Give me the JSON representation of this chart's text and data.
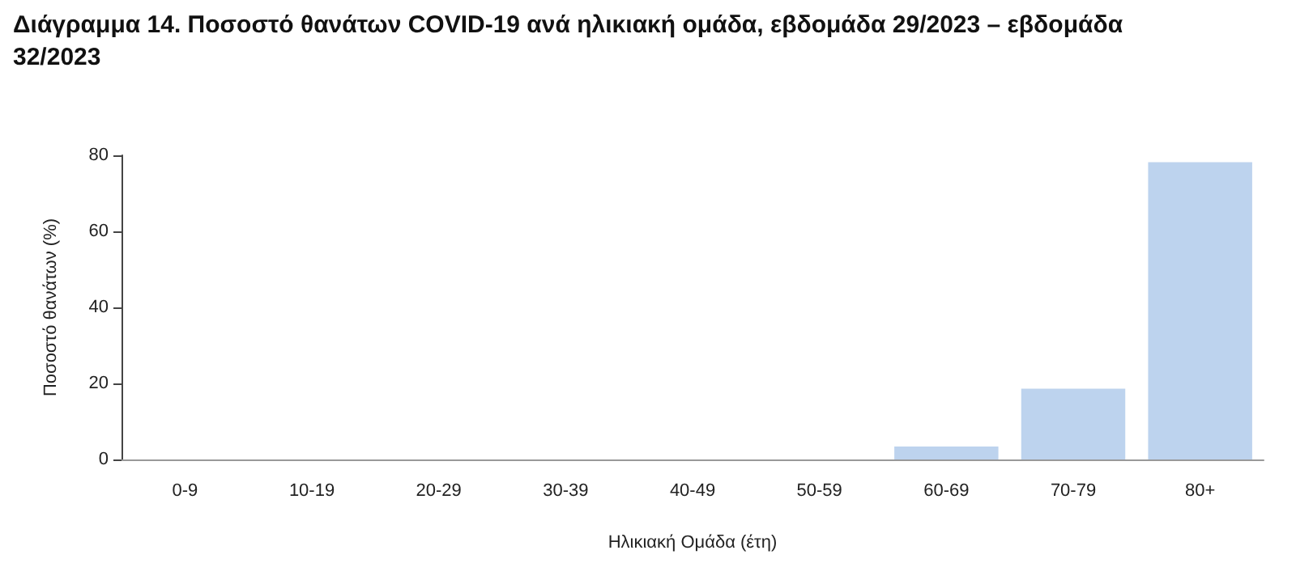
{
  "chart_data": {
    "type": "bar",
    "title": "Διάγραμμα 14. Ποσοστό θανάτων COVID-19 ανά ηλικιακή ομάδα, εβδομάδα 29/2023 – εβδομάδα 32/2023",
    "xlabel": "Ηλικιακή Ομάδα (έτη)",
    "ylabel": "Ποσοστό θανάτων (%)",
    "categories": [
      "0-9",
      "10-19",
      "20-29",
      "30-39",
      "40-49",
      "50-59",
      "60-69",
      "70-79",
      "80+"
    ],
    "values": [
      0,
      0,
      0,
      0,
      0,
      0,
      3.4,
      18.6,
      78.2
    ],
    "color": "#bdd3ee",
    "ylim": [
      0,
      80
    ],
    "yticks": [
      0,
      20,
      40,
      60,
      80
    ],
    "grid": false
  }
}
